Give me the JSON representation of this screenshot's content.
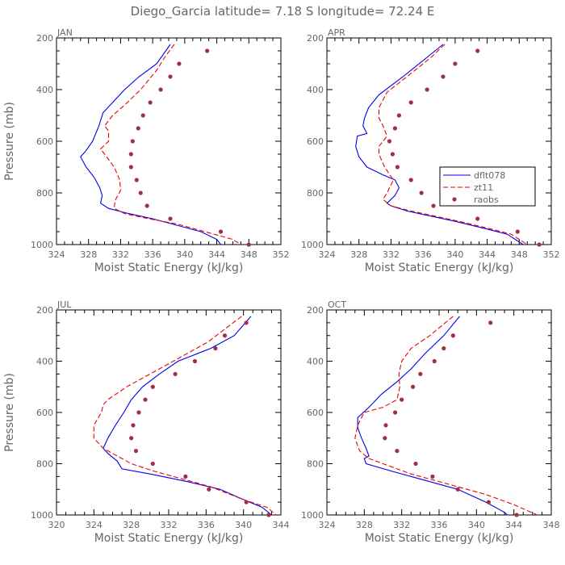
{
  "figure_title": "Diego_Garcia   latitude= 7.18 S longitude= 72.24 E",
  "legend": [
    {
      "label": "dflt078",
      "color": "#0000ee",
      "style": "solid"
    },
    {
      "label": "zt11",
      "color": "#ee0000",
      "style": "dashed"
    },
    {
      "label": "raobs",
      "color": "#a0304a",
      "style": "dots"
    }
  ],
  "chart_data": [
    {
      "type": "line",
      "title": "JAN",
      "xlabel": "Moist Static Energy (kJ/kg)",
      "ylabel": "Pressure (mb)",
      "xlim": [
        324,
        352
      ],
      "xticks": [
        324,
        328,
        332,
        336,
        340,
        344,
        348,
        352
      ],
      "ylim": [
        1000,
        200
      ],
      "yticks": [
        200,
        400,
        600,
        800,
        1000
      ],
      "series": [
        {
          "name": "dflt078",
          "points": [
            [
              338.2,
              225
            ],
            [
              336.5,
              300
            ],
            [
              334.3,
              350
            ],
            [
              332.5,
              400
            ],
            [
              331,
              450
            ],
            [
              329.8,
              490
            ],
            [
              329.3,
              540
            ],
            [
              328.5,
              600
            ],
            [
              327.6,
              640
            ],
            [
              327,
              660
            ],
            [
              327.7,
              700
            ],
            [
              328.7,
              740
            ],
            [
              329.4,
              780
            ],
            [
              329.7,
              810
            ],
            [
              329.5,
              840
            ],
            [
              330.5,
              860
            ],
            [
              333,
              880
            ],
            [
              336,
              900
            ],
            [
              339,
              925
            ],
            [
              342,
              950
            ],
            [
              344,
              980
            ],
            [
              344.5,
              1000
            ]
          ]
        },
        {
          "name": "zt11",
          "points": [
            [
              338.7,
              225
            ],
            [
              337.5,
              275
            ],
            [
              336.5,
              325
            ],
            [
              334.5,
              400
            ],
            [
              332.5,
              460
            ],
            [
              331,
              500
            ],
            [
              330,
              540
            ],
            [
              330.5,
              560
            ],
            [
              330.5,
              600
            ],
            [
              329.5,
              630
            ],
            [
              330,
              650
            ],
            [
              331.2,
              700
            ],
            [
              331.9,
              750
            ],
            [
              332,
              790
            ],
            [
              331.3,
              830
            ],
            [
              331.2,
              860
            ],
            [
              332.5,
              880
            ],
            [
              335.5,
              900
            ],
            [
              339,
              920
            ],
            [
              342.5,
              950
            ],
            [
              346,
              980
            ],
            [
              347,
              1000
            ]
          ]
        },
        {
          "name": "raobs",
          "points": [
            [
              342.8,
              250
            ],
            [
              339.3,
              300
            ],
            [
              338.2,
              350
            ],
            [
              337,
              400
            ],
            [
              335.7,
              450
            ],
            [
              334.8,
              500
            ],
            [
              334.2,
              550
            ],
            [
              333.5,
              600
            ],
            [
              333.3,
              650
            ],
            [
              333.3,
              700
            ],
            [
              334,
              750
            ],
            [
              334.5,
              800
            ],
            [
              335.3,
              850
            ],
            [
              338.2,
              900
            ],
            [
              344.5,
              950
            ],
            [
              348,
              1000
            ]
          ]
        }
      ]
    },
    {
      "type": "line",
      "title": "APR",
      "xlabel": "Moist Static Energy (kJ/kg)",
      "ylabel": "",
      "xlim": [
        324,
        352
      ],
      "xticks": [
        324,
        328,
        332,
        336,
        340,
        344,
        348,
        352
      ],
      "ylim": [
        1000,
        200
      ],
      "yticks": [
        200,
        400,
        600,
        800,
        1000
      ],
      "series": [
        {
          "name": "dflt078",
          "points": [
            [
              338.5,
              225
            ],
            [
              336.5,
              275
            ],
            [
              333.5,
              350
            ],
            [
              330.5,
              420
            ],
            [
              329.2,
              470
            ],
            [
              328.7,
              510
            ],
            [
              328.5,
              540
            ],
            [
              329,
              570
            ],
            [
              327.8,
              580
            ],
            [
              327.6,
              620
            ],
            [
              328,
              660
            ],
            [
              329,
              700
            ],
            [
              331,
              730
            ],
            [
              332.5,
              750
            ],
            [
              333,
              780
            ],
            [
              332.5,
              810
            ],
            [
              331.5,
              840
            ],
            [
              332,
              850
            ],
            [
              334,
              870
            ],
            [
              337,
              890
            ],
            [
              340,
              910
            ],
            [
              344,
              940
            ],
            [
              346.5,
              960
            ],
            [
              348,
              990
            ],
            [
              348.5,
              1000
            ]
          ]
        },
        {
          "name": "zt11",
          "points": [
            [
              338.7,
              225
            ],
            [
              337,
              275
            ],
            [
              334,
              350
            ],
            [
              331.5,
              410
            ],
            [
              330.5,
              470
            ],
            [
              330.5,
              510
            ],
            [
              331,
              540
            ],
            [
              331.5,
              580
            ],
            [
              330.5,
              620
            ],
            [
              330.5,
              650
            ],
            [
              331.2,
              700
            ],
            [
              332.3,
              750
            ],
            [
              331.5,
              800
            ],
            [
              331,
              825
            ],
            [
              332,
              850
            ],
            [
              334.5,
              870
            ],
            [
              337.5,
              890
            ],
            [
              340.5,
              910
            ],
            [
              344.5,
              940
            ],
            [
              347,
              960
            ],
            [
              348.5,
              990
            ],
            [
              349,
              1000
            ]
          ]
        },
        {
          "name": "raobs",
          "points": [
            [
              342.8,
              250
            ],
            [
              340,
              300
            ],
            [
              338.5,
              350
            ],
            [
              336.5,
              400
            ],
            [
              334.5,
              450
            ],
            [
              333,
              500
            ],
            [
              332.5,
              550
            ],
            [
              331.8,
              600
            ],
            [
              332.2,
              650
            ],
            [
              332.8,
              700
            ],
            [
              334.5,
              750
            ],
            [
              335.8,
              800
            ],
            [
              337.3,
              850
            ],
            [
              342.8,
              900
            ],
            [
              347.8,
              950
            ],
            [
              350.5,
              1000
            ]
          ]
        }
      ]
    },
    {
      "type": "line",
      "title": "JUL",
      "xlabel": "Moist Static Energy (kJ/kg)",
      "ylabel": "Pressure (mb)",
      "xlim": [
        320,
        344
      ],
      "xticks": [
        320,
        324,
        328,
        332,
        336,
        340,
        344
      ],
      "ylim": [
        1000,
        200
      ],
      "yticks": [
        200,
        400,
        600,
        800,
        1000
      ],
      "series": [
        {
          "name": "dflt078",
          "points": [
            [
              340.8,
              225
            ],
            [
              339,
              300
            ],
            [
              336.5,
              350
            ],
            [
              333,
              400
            ],
            [
              331,
              450
            ],
            [
              329.2,
              500
            ],
            [
              328,
              550
            ],
            [
              327.2,
              600
            ],
            [
              326.3,
              650
            ],
            [
              325.5,
              700
            ],
            [
              325,
              740
            ],
            [
              325.5,
              760
            ],
            [
              326.5,
              790
            ],
            [
              327,
              820
            ],
            [
              330,
              840
            ],
            [
              334,
              870
            ],
            [
              337.5,
              900
            ],
            [
              340,
              940
            ],
            [
              342,
              970
            ],
            [
              343,
              1000
            ]
          ]
        },
        {
          "name": "zt11",
          "points": [
            [
              339.8,
              225
            ],
            [
              338,
              275
            ],
            [
              336.2,
              325
            ],
            [
              332.5,
              400
            ],
            [
              330,
              450
            ],
            [
              327.5,
              500
            ],
            [
              325.5,
              550
            ],
            [
              325,
              570
            ],
            [
              324.8,
              600
            ],
            [
              324,
              650
            ],
            [
              324,
              700
            ],
            [
              325,
              740
            ],
            [
              326.5,
              770
            ],
            [
              328,
              800
            ],
            [
              330.5,
              830
            ],
            [
              333.5,
              860
            ],
            [
              336.5,
              890
            ],
            [
              340,
              940
            ],
            [
              342.5,
              970
            ],
            [
              343.5,
              1000
            ]
          ]
        },
        {
          "name": "raobs",
          "points": [
            [
              340.3,
              250
            ],
            [
              338,
              300
            ],
            [
              337,
              350
            ],
            [
              334.8,
              400
            ],
            [
              332.7,
              450
            ],
            [
              330.3,
              500
            ],
            [
              329.5,
              550
            ],
            [
              328.8,
              600
            ],
            [
              328.2,
              650
            ],
            [
              328,
              700
            ],
            [
              328.5,
              750
            ],
            [
              330.3,
              800
            ],
            [
              333.8,
              850
            ],
            [
              336.3,
              900
            ],
            [
              340.3,
              950
            ],
            [
              342.7,
              1000
            ]
          ]
        }
      ]
    },
    {
      "type": "line",
      "title": "OCT",
      "xlabel": "Moist Static Energy (kJ/kg)",
      "ylabel": "",
      "xlim": [
        324,
        348
      ],
      "xticks": [
        324,
        328,
        332,
        336,
        340,
        344,
        348
      ],
      "ylim": [
        1000,
        200
      ],
      "yticks": [
        200,
        400,
        600,
        800,
        1000
      ],
      "series": [
        {
          "name": "dflt078",
          "points": [
            [
              338.2,
              225
            ],
            [
              336.5,
              300
            ],
            [
              334.5,
              370
            ],
            [
              333,
              430
            ],
            [
              331.5,
              480
            ],
            [
              329.8,
              530
            ],
            [
              328.5,
              580
            ],
            [
              327.3,
              620
            ],
            [
              327.3,
              660
            ],
            [
              327.7,
              700
            ],
            [
              328.2,
              740
            ],
            [
              328.5,
              770
            ],
            [
              328,
              780
            ],
            [
              328.2,
              800
            ],
            [
              331,
              830
            ],
            [
              335,
              870
            ],
            [
              338,
              900
            ],
            [
              341,
              950
            ],
            [
              343,
              990
            ],
            [
              343.3,
              1000
            ]
          ]
        },
        {
          "name": "zt11",
          "points": [
            [
              337.5,
              225
            ],
            [
              335,
              300
            ],
            [
              333,
              350
            ],
            [
              332,
              400
            ],
            [
              331.7,
              450
            ],
            [
              331.8,
              500
            ],
            [
              331.5,
              550
            ],
            [
              330,
              580
            ],
            [
              328,
              600
            ],
            [
              327.3,
              650
            ],
            [
              327,
              700
            ],
            [
              327.5,
              750
            ],
            [
              328.5,
              780
            ],
            [
              330,
              800
            ],
            [
              333,
              840
            ],
            [
              337,
              880
            ],
            [
              341,
              920
            ],
            [
              344,
              960
            ],
            [
              346.5,
              1000
            ]
          ]
        },
        {
          "name": "raobs",
          "points": [
            [
              341.5,
              250
            ],
            [
              337.5,
              300
            ],
            [
              336.5,
              350
            ],
            [
              335.5,
              400
            ],
            [
              334,
              450
            ],
            [
              333.2,
              500
            ],
            [
              332,
              550
            ],
            [
              331.3,
              600
            ],
            [
              330.3,
              650
            ],
            [
              330.2,
              700
            ],
            [
              331.5,
              750
            ],
            [
              333.5,
              800
            ],
            [
              335.3,
              850
            ],
            [
              338,
              900
            ],
            [
              341.3,
              950
            ],
            [
              344.3,
              1000
            ]
          ]
        }
      ]
    }
  ]
}
